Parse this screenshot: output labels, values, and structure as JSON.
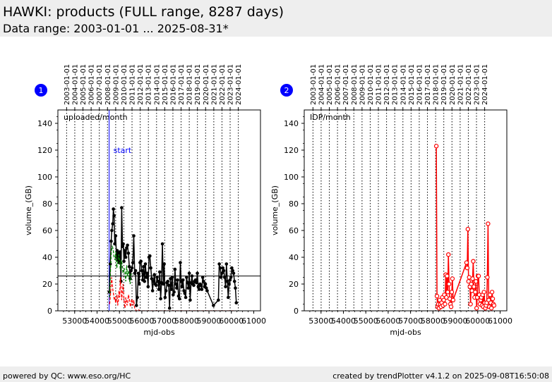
{
  "header": {
    "title": "HAWKI: products (FULL range, 8287 days)",
    "subtitle": "Data range: 2003-01-01 ... 2025-08-31*"
  },
  "footer": {
    "left": "powered by QC: www.eso.org/HC",
    "right": "created by trendPlotter v4.1.2 on 2025-09-08T16:50:08"
  },
  "colors": {
    "black": "#000000",
    "green": "#008000",
    "red": "#ff0000",
    "blue": "#0000ff",
    "marker_badge": "#0000ff"
  },
  "chart_data": [
    {
      "type": "line",
      "badge": "1",
      "annotation": "uploaded/month",
      "marker_label": "start",
      "marker_x": 54540,
      "reference_y": 26,
      "xlabel": "mjd-obs",
      "ylabel": "volume_(GB)",
      "xlim": [
        52250,
        61300
      ],
      "ylim": [
        0,
        150
      ],
      "xticks": [
        53000,
        54000,
        55000,
        56000,
        57000,
        58000,
        59000,
        60000,
        61000
      ],
      "xtick_labels": [
        "53000",
        "54000",
        "55000",
        "56000",
        "57000",
        "58000",
        "59000",
        "60000",
        "61000"
      ],
      "yticks": [
        0,
        20,
        40,
        60,
        80,
        100,
        120,
        140
      ],
      "ytick_labels": [
        "0",
        "20",
        "40",
        "60",
        "80",
        "100",
        "120",
        "140"
      ],
      "top_ticks": [
        52640,
        53005,
        53371,
        53736,
        54101,
        54466,
        54832,
        55197,
        55562,
        55927,
        56293,
        56658,
        57023,
        57388,
        57754,
        58119,
        58484,
        58849,
        59215,
        59580,
        59945,
        60310
      ],
      "top_tick_labels": [
        "2003-01-01",
        "2004-01-01",
        "2005-01-01",
        "2006-01-01",
        "2007-01-01",
        "2008-01-01",
        "2009-01-01",
        "2010-01-01",
        "2011-01-01",
        "2012-01-01",
        "2013-01-01",
        "2014-01-01",
        "2015-01-01",
        "2016-01-01",
        "2017-01-01",
        "2018-01-01",
        "2019-01-01",
        "2020-01-01",
        "2021-01-01",
        "2022-01-01",
        "2023-01-01",
        "2024-01-01"
      ],
      "series": [
        {
          "color": "#000000",
          "style": "line-filled-markers",
          "x": [
            54550,
            54590,
            54630,
            54660,
            54700,
            54730,
            54760,
            54790,
            54830,
            54870,
            54900,
            54930,
            54960,
            54990,
            55030,
            55070,
            55100,
            55140,
            55170,
            55200,
            55240,
            55280,
            55320,
            55360,
            55400,
            55440,
            55480,
            55520,
            55560,
            55600,
            55640,
            55680,
            55720,
            55760,
            55800,
            55840,
            55880,
            55920,
            55960,
            56000,
            56040,
            56080,
            56120,
            56160,
            56200,
            56240,
            56280,
            56320,
            56360,
            56400,
            56440,
            56480,
            56520,
            56560,
            56600,
            56640,
            56680,
            56720,
            56760,
            56800,
            56840,
            56880,
            56920,
            56960,
            57000,
            57040,
            57080,
            57120,
            57160,
            57200,
            57240,
            57280,
            57320,
            57360,
            57400,
            57440,
            57480,
            57520,
            57560,
            57600,
            57640,
            57680,
            57720,
            57760,
            57800,
            57840,
            57880,
            57920,
            57960,
            58000,
            58040,
            58080,
            58120,
            58160,
            58200,
            58240,
            58280,
            58320,
            58360,
            58400,
            58440,
            58480,
            58520,
            58560,
            58600,
            58640,
            58680,
            58720,
            58760,
            58800,
            58840,
            58880,
            58920,
            59200,
            59420,
            59460,
            59500,
            59540,
            59580,
            59620,
            59660,
            59700,
            59740,
            59780,
            59820,
            59860,
            59900,
            59940,
            59980,
            60020,
            60060,
            60100,
            60140,
            60180,
            60220
          ],
          "y": [
            14,
            35,
            52,
            60,
            65,
            76,
            71,
            50,
            56,
            40,
            45,
            38,
            43,
            36,
            44,
            22,
            77,
            48,
            50,
            37,
            45,
            40,
            47,
            49,
            43,
            33,
            24,
            30,
            32,
            36,
            56,
            28,
            30,
            4,
            10,
            28,
            20,
            36,
            37,
            30,
            23,
            33,
            22,
            35,
            25,
            28,
            18,
            40,
            41,
            32,
            24,
            15,
            22,
            27,
            20,
            19,
            25,
            22,
            16,
            29,
            9,
            21,
            50,
            20,
            35,
            10,
            15,
            21,
            22,
            19,
            2,
            24,
            16,
            25,
            12,
            14,
            31,
            20,
            17,
            23,
            11,
            9,
            36,
            22,
            18,
            23,
            15,
            13,
            10,
            25,
            21,
            17,
            28,
            8,
            21,
            26,
            20,
            19,
            22,
            23,
            21,
            28,
            18,
            16,
            20,
            19,
            16,
            25,
            22,
            18,
            20,
            17,
            15,
            4,
            8,
            35,
            32,
            25,
            28,
            32,
            30,
            25,
            18,
            35,
            22,
            10,
            20,
            23,
            25,
            32,
            30,
            28,
            22,
            17,
            6
          ]
        },
        {
          "color": "#008000",
          "style": "dashed",
          "x": [
            54560,
            54600,
            54640,
            54680,
            54720,
            54760,
            54800,
            54840,
            54880,
            54920,
            54960,
            55000,
            55040,
            55080,
            55120,
            55160,
            55200,
            55240,
            55280,
            55320,
            55360,
            55400,
            55440,
            55480,
            55520
          ],
          "y": [
            10,
            30,
            45,
            48,
            46,
            40,
            38,
            44,
            32,
            36,
            42,
            40,
            30,
            38,
            35,
            28,
            32,
            30,
            22,
            34,
            26,
            30,
            24,
            20,
            28
          ]
        },
        {
          "color": "#ff0000",
          "style": "dashed",
          "x": [
            54560,
            54590,
            54620,
            54650,
            54680,
            54710,
            54740,
            54770,
            54800,
            54830,
            54860,
            54890,
            54920,
            54950,
            54980,
            55010,
            55040,
            55070,
            55100,
            55130,
            55160,
            55190,
            55220,
            55250,
            55280,
            55310,
            55340,
            55370,
            55400,
            55430,
            55460,
            55490,
            55520,
            55550,
            55580,
            55610,
            55640,
            55680,
            55720,
            55760,
            55800,
            55850,
            55900,
            56000,
            56200,
            56500,
            57000,
            57500,
            58000,
            58500,
            59000,
            59500,
            60000,
            60200
          ],
          "y": [
            5,
            10,
            18,
            25,
            20,
            15,
            12,
            8,
            10,
            6,
            8,
            12,
            4,
            7,
            15,
            10,
            25,
            18,
            8,
            14,
            20,
            12,
            5,
            2,
            10,
            8,
            4,
            6,
            12,
            10,
            7,
            3,
            5,
            9,
            6,
            4,
            8,
            2,
            1,
            0,
            0,
            1,
            0,
            0,
            0,
            0,
            0,
            0,
            0,
            0,
            0,
            0,
            0,
            0
          ]
        }
      ]
    },
    {
      "type": "line",
      "badge": "2",
      "annotation": "IDP/month",
      "xlabel": "mjd-obs",
      "ylabel": "volume_(GB)",
      "xlim": [
        52250,
        61300
      ],
      "ylim": [
        0,
        150
      ],
      "xticks": [
        53000,
        54000,
        55000,
        56000,
        57000,
        58000,
        59000,
        60000,
        61000
      ],
      "xtick_labels": [
        "53000",
        "54000",
        "55000",
        "56000",
        "57000",
        "58000",
        "59000",
        "60000",
        "61000"
      ],
      "yticks": [
        0,
        20,
        40,
        60,
        80,
        100,
        120,
        140
      ],
      "ytick_labels": [
        "0",
        "20",
        "40",
        "60",
        "80",
        "100",
        "120",
        "140"
      ],
      "top_ticks": [
        52640,
        53005,
        53371,
        53736,
        54101,
        54466,
        54832,
        55197,
        55562,
        55927,
        56293,
        56658,
        57023,
        57388,
        57754,
        58119,
        58484,
        58849,
        59215,
        59580,
        59945,
        60310
      ],
      "top_tick_labels": [
        "2003-01-01",
        "2004-01-01",
        "2005-01-01",
        "2006-01-01",
        "2007-01-01",
        "2008-01-01",
        "2009-01-01",
        "2010-01-01",
        "2011-01-01",
        "2012-01-01",
        "2013-01-01",
        "2014-01-01",
        "2015-01-01",
        "2016-01-01",
        "2017-01-01",
        "2018-01-01",
        "2019-01-01",
        "2020-01-01",
        "2021-01-01",
        "2022-01-01",
        "2023-01-01",
        "2024-01-01"
      ],
      "series": [
        {
          "color": "#ff0000",
          "style": "line-open-markers",
          "x": [
            58150,
            58180,
            58210,
            58240,
            58270,
            58300,
            58330,
            58360,
            58390,
            58420,
            58450,
            58480,
            58510,
            58540,
            58570,
            58600,
            58630,
            58660,
            58690,
            58720,
            58750,
            58780,
            58810,
            58840,
            58870,
            58900,
            59500,
            59530,
            59560,
            59590,
            59620,
            59650,
            59680,
            59710,
            59740,
            59770,
            59800,
            59830,
            59860,
            59890,
            59920,
            59950,
            59980,
            60010,
            60040,
            60070,
            60100,
            60130,
            60160,
            60190,
            60220,
            60250,
            60280,
            60310,
            60340,
            60370,
            60400,
            60430,
            60460,
            60490,
            60520,
            60550,
            60580,
            60610,
            60640,
            60670,
            60700,
            60730
          ],
          "y": [
            123,
            11,
            3,
            5,
            2,
            8,
            5,
            3,
            6,
            10,
            4,
            8,
            12,
            5,
            27,
            10,
            26,
            14,
            42,
            20,
            9,
            5,
            3,
            14,
            24,
            8,
            36,
            32,
            61,
            22,
            25,
            18,
            5,
            20,
            15,
            24,
            37,
            18,
            10,
            14,
            22,
            2,
            10,
            26,
            26,
            12,
            5,
            8,
            10,
            4,
            12,
            3,
            14,
            6,
            2,
            4,
            6,
            25,
            65,
            8,
            3,
            12,
            6,
            2,
            14,
            9,
            5,
            4
          ]
        }
      ]
    }
  ]
}
